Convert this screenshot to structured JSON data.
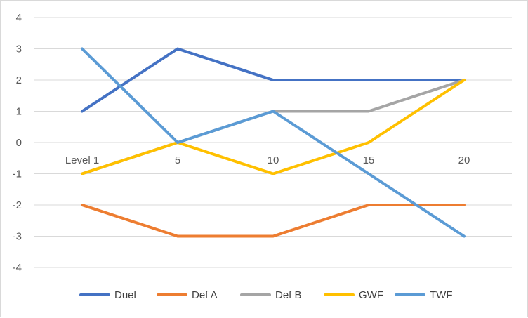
{
  "chart_data": {
    "type": "line",
    "title": "",
    "xlabel": "",
    "ylabel": "",
    "categories": [
      "Level 1",
      "5",
      "10",
      "15",
      "20"
    ],
    "ylim": [
      -4,
      4
    ],
    "yticks": [
      4,
      3,
      2,
      1,
      0,
      -1,
      -2,
      -3,
      -4
    ],
    "grid": "horizontal",
    "legend_position": "bottom",
    "series": [
      {
        "name": "Duel",
        "color": "#4472C4",
        "values": [
          1,
          3,
          2,
          2,
          2
        ]
      },
      {
        "name": "Def A",
        "color": "#ED7D31",
        "values": [
          -2,
          -3,
          -3,
          -2,
          -2
        ]
      },
      {
        "name": "Def B",
        "color": "#A5A5A5",
        "values": [
          -1,
          0,
          1,
          1,
          2
        ]
      },
      {
        "name": "GWF",
        "color": "#FFC000",
        "values": [
          -1,
          0,
          -1,
          0,
          2
        ]
      },
      {
        "name": "TWF",
        "color": "#5B9BD5",
        "values": [
          3,
          0,
          1,
          -1,
          -3
        ]
      }
    ]
  }
}
